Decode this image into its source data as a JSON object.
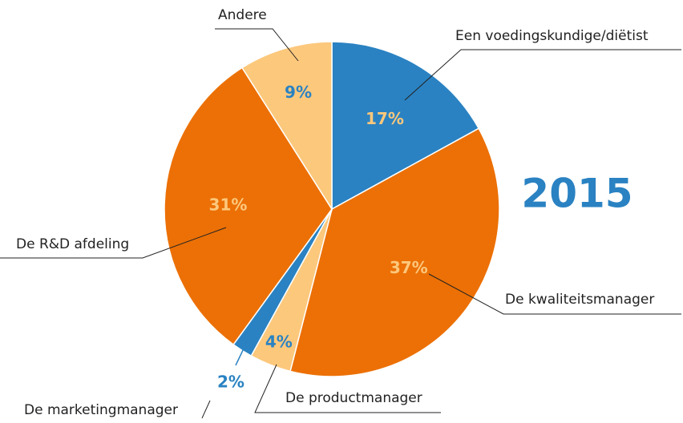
{
  "chart_data": {
    "type": "pie",
    "title": "2015",
    "categories": [
      "Een voedingskundige/diëtist",
      "De kwaliteitsmanager",
      "De productmanager",
      "De marketingmanager",
      "De R&D afdeling",
      "Andere"
    ],
    "values": [
      17,
      37,
      4,
      2,
      31,
      9
    ],
    "value_labels": [
      "17%",
      "37%",
      "4%",
      "2%",
      "31%",
      "9%"
    ],
    "colors": [
      "#2a82c2",
      "#ec7005",
      "#fcc87c",
      "#2a82c2",
      "#ec7005",
      "#fcc87c"
    ]
  }
}
